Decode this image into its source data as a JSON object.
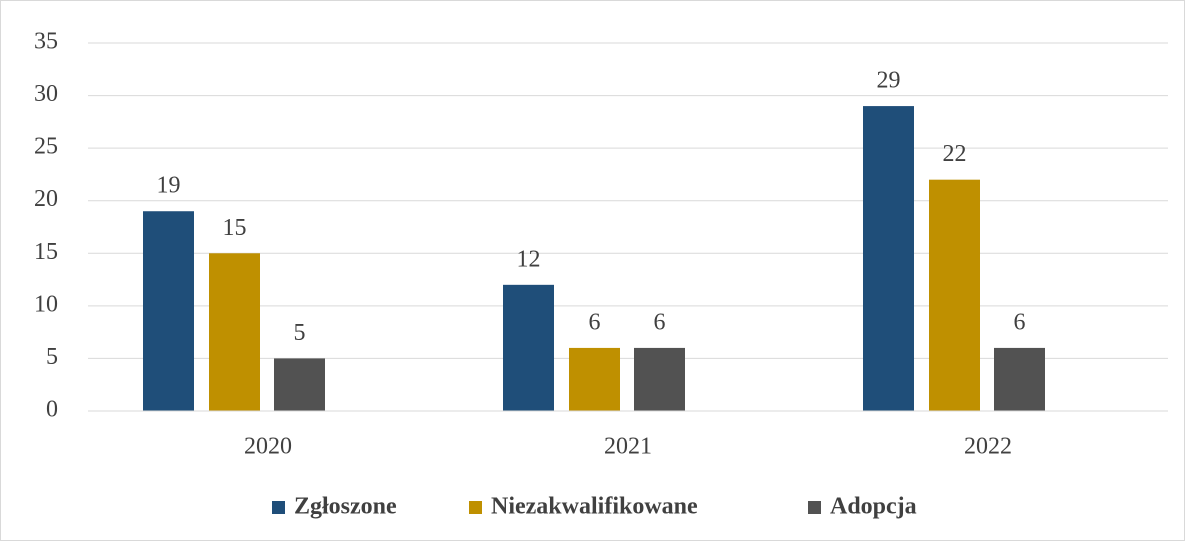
{
  "chart_data": {
    "type": "bar",
    "categories": [
      "2020",
      "2021",
      "2022"
    ],
    "series": [
      {
        "name": "Zgłoszone",
        "color": "#1f4e79",
        "values": [
          19,
          12,
          29
        ]
      },
      {
        "name": "Niezakwalifikowane",
        "color": "#bf9000",
        "values": [
          15,
          6,
          22
        ]
      },
      {
        "name": "Adopcja",
        "color": "#525252",
        "values": [
          5,
          6,
          6
        ]
      }
    ],
    "ylim": [
      0,
      35
    ],
    "yticks": [
      0,
      5,
      10,
      15,
      20,
      25,
      30,
      35
    ],
    "grid": true,
    "data_labels": true,
    "legend": "bottom"
  }
}
